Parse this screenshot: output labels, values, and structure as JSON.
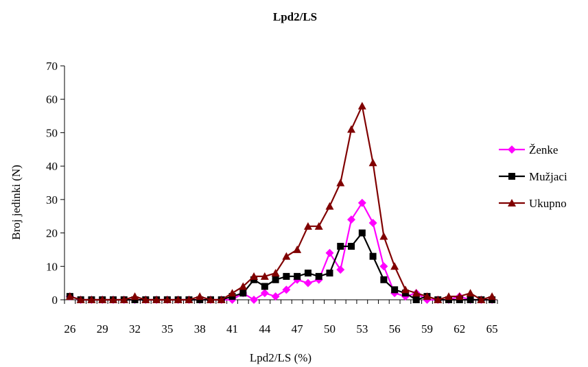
{
  "chart_data": {
    "type": "line",
    "title": "Lpd2/LS",
    "xlabel": "Lpd2/LS (%)",
    "ylabel": "Broj jedinki (N)",
    "ylim": [
      0,
      70
    ],
    "yticks": [
      0,
      10,
      20,
      30,
      40,
      50,
      60,
      70
    ],
    "x": [
      26,
      27,
      28,
      29,
      30,
      31,
      32,
      33,
      34,
      35,
      36,
      37,
      38,
      39,
      40,
      41,
      42,
      43,
      44,
      45,
      46,
      47,
      48,
      49,
      50,
      51,
      52,
      53,
      54,
      55,
      56,
      57,
      58,
      59,
      60,
      61,
      62,
      63,
      64,
      65
    ],
    "xtick_labels": [
      "26",
      "29",
      "32",
      "35",
      "38",
      "41",
      "44",
      "47",
      "50",
      "53",
      "56",
      "59",
      "62",
      "65"
    ],
    "legend_position": "right",
    "series": [
      {
        "name": "Ženke",
        "color": "#ff00ff",
        "marker": "diamond",
        "values": [
          1,
          0,
          0,
          0,
          0,
          0,
          0,
          0,
          0,
          0,
          0,
          0,
          0,
          0,
          0,
          0,
          2,
          0,
          2,
          1,
          3,
          6,
          5,
          6,
          14,
          9,
          24,
          29,
          23,
          10,
          2,
          1,
          2,
          0,
          0,
          0,
          1,
          0,
          0,
          0
        ]
      },
      {
        "name": "Mužjaci",
        "color": "#000000",
        "marker": "square",
        "values": [
          1,
          0,
          0,
          0,
          0,
          0,
          0,
          0,
          0,
          0,
          0,
          0,
          0,
          0,
          0,
          1,
          2,
          6,
          4,
          6,
          7,
          7,
          8,
          7,
          8,
          16,
          16,
          20,
          13,
          6,
          3,
          2,
          0,
          1,
          0,
          0,
          0,
          0,
          0,
          0
        ]
      },
      {
        "name": "Ukupno",
        "color": "#800000",
        "marker": "triangle",
        "values": [
          1,
          0,
          0,
          0,
          0,
          0,
          1,
          0,
          0,
          0,
          0,
          0,
          1,
          0,
          0,
          2,
          4,
          7,
          7,
          8,
          13,
          15,
          22,
          22,
          28,
          35,
          51,
          58,
          41,
          19,
          10,
          3,
          2,
          1,
          0,
          1,
          1,
          2,
          0,
          1
        ]
      }
    ]
  }
}
